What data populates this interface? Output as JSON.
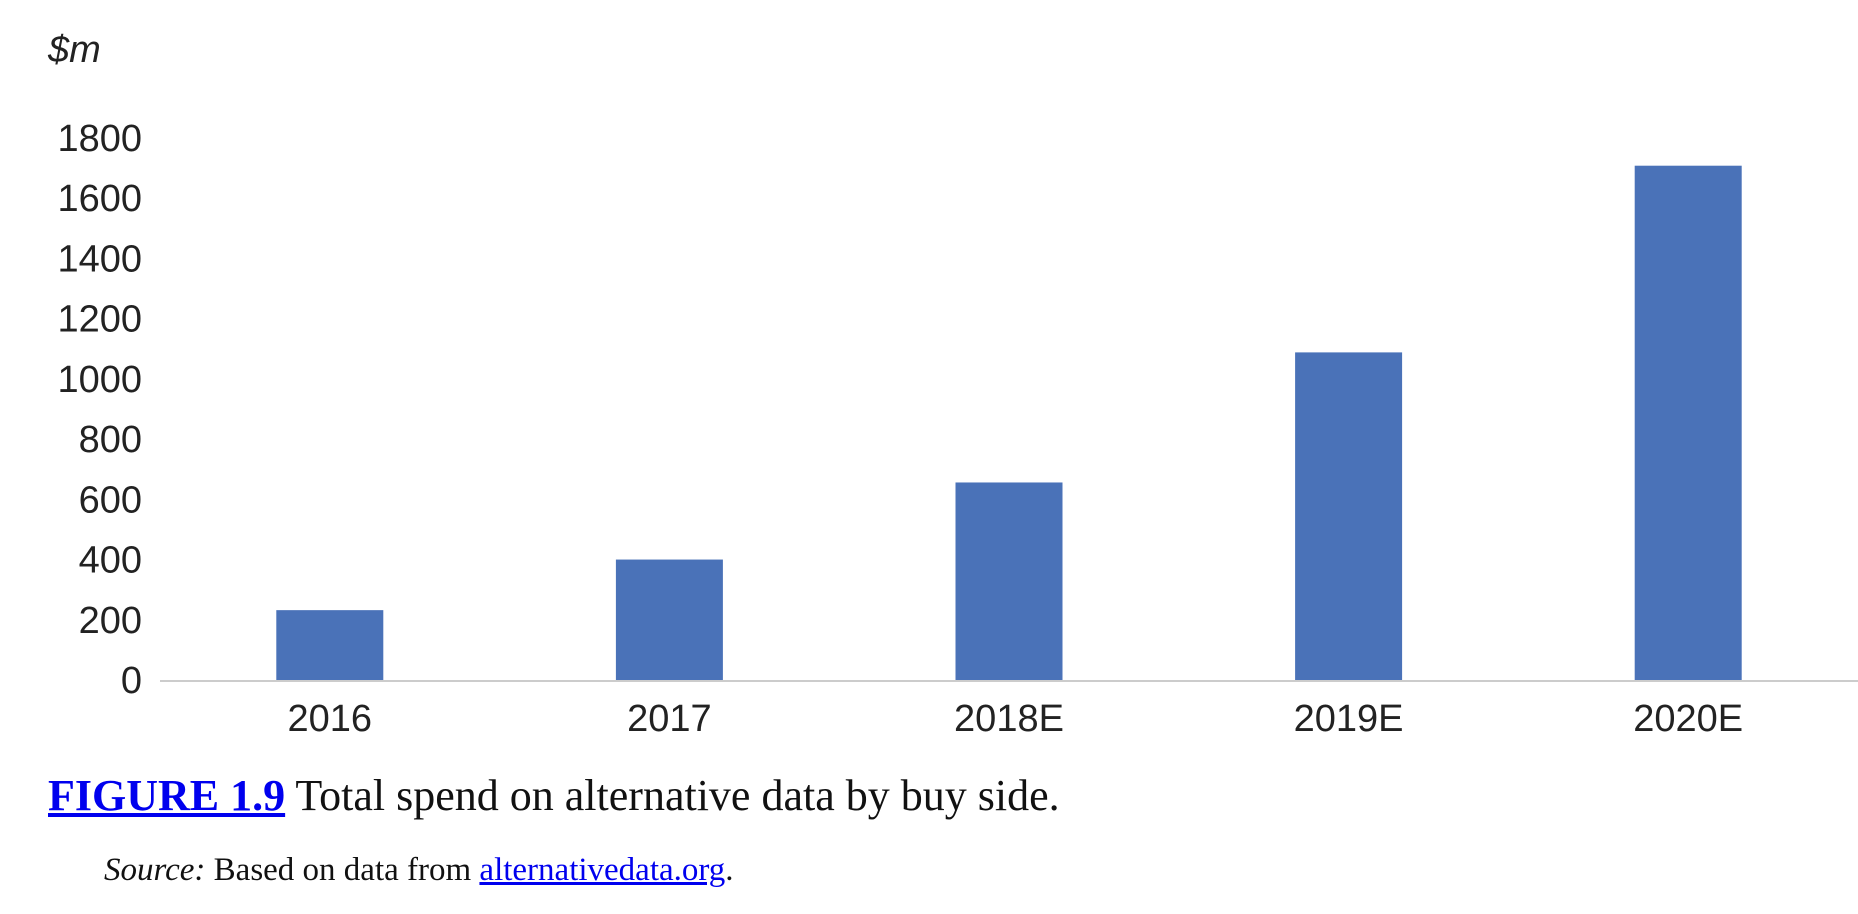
{
  "chart_data": {
    "type": "bar",
    "unit_label": "$m",
    "categories": [
      "2016",
      "2017",
      "2018E",
      "2019E",
      "2020E"
    ],
    "values": [
      232,
      400,
      656,
      1088,
      1708
    ],
    "yticks": [
      "0",
      "200",
      "400",
      "600",
      "800",
      "1000",
      "1200",
      "1400",
      "1600",
      "1800"
    ],
    "ylim": [
      0,
      1800
    ],
    "bar_color": "#4a72b8",
    "axis_color": "#cccccc",
    "grid": false
  },
  "caption": {
    "figure_label": "FIGURE 1.9",
    "text": "Total spend on alternative data by buy side."
  },
  "source": {
    "label": "Source:",
    "text": "Based on data from",
    "link_text": "alternativedata.org",
    "trailing": "."
  }
}
